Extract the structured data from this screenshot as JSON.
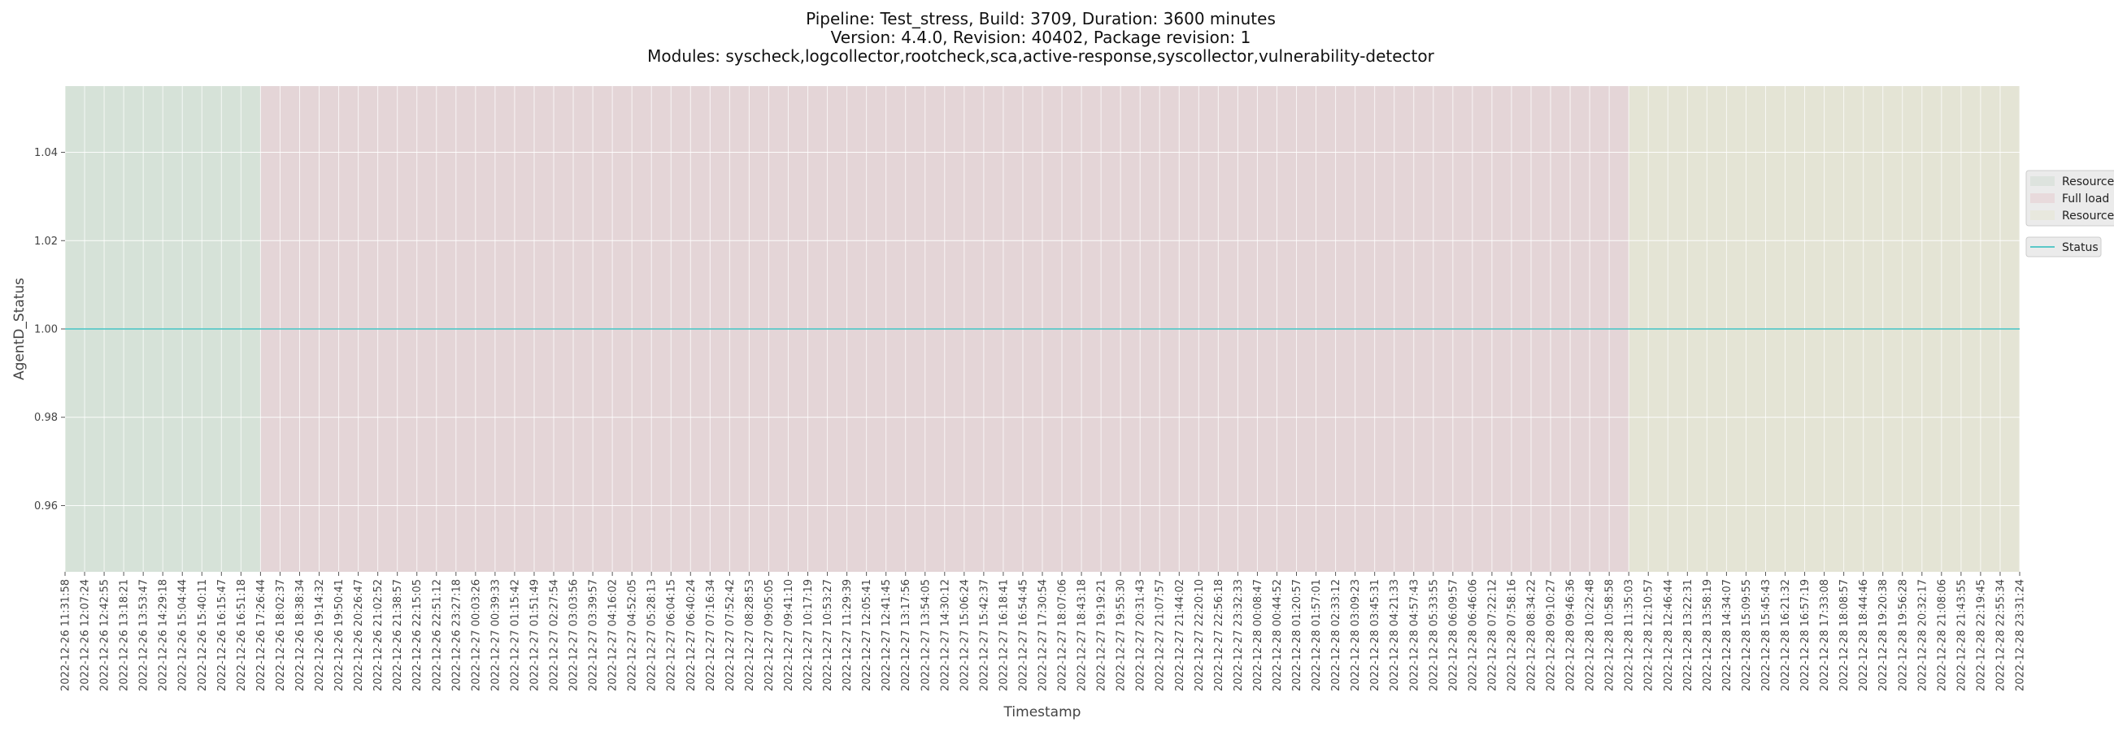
{
  "chart_data": {
    "type": "line",
    "title_lines": [
      "Pipeline: Test_stress, Build: 3709, Duration: 3600 minutes",
      "Version: 4.4.0, Revision: 40402, Package revision: 1",
      "Modules: syscheck,logcollector,rootcheck,sca,active-response,syscollector,vulnerability-detector"
    ],
    "xlabel": "Timestamp",
    "ylabel": "AgentD_Status",
    "ylim": [
      0.945,
      1.055
    ],
    "yticks": [
      0.96,
      0.98,
      1.0,
      1.02,
      1.04
    ],
    "ytick_labels": [
      "0.96",
      "0.98",
      "1.00",
      "1.02",
      "1.04"
    ],
    "grid": true,
    "legend_placement": "outside-right",
    "x": [
      "2022-12-26 11:31:58",
      "2022-12-26 12:07:24",
      "2022-12-26 12:42:55",
      "2022-12-26 13:18:21",
      "2022-12-26 13:53:47",
      "2022-12-26 14:29:18",
      "2022-12-26 15:04:44",
      "2022-12-26 15:40:11",
      "2022-12-26 16:15:47",
      "2022-12-26 16:51:18",
      "2022-12-26 17:26:44",
      "2022-12-26 18:02:37",
      "2022-12-26 18:38:34",
      "2022-12-26 19:14:32",
      "2022-12-26 19:50:41",
      "2022-12-26 20:26:47",
      "2022-12-26 21:02:52",
      "2022-12-26 21:38:57",
      "2022-12-26 22:15:05",
      "2022-12-26 22:51:12",
      "2022-12-26 23:27:18",
      "2022-12-27 00:03:26",
      "2022-12-27 00:39:33",
      "2022-12-27 01:15:42",
      "2022-12-27 01:51:49",
      "2022-12-27 02:27:54",
      "2022-12-27 03:03:56",
      "2022-12-27 03:39:57",
      "2022-12-27 04:16:02",
      "2022-12-27 04:52:05",
      "2022-12-27 05:28:13",
      "2022-12-27 06:04:15",
      "2022-12-27 06:40:24",
      "2022-12-27 07:16:34",
      "2022-12-27 07:52:42",
      "2022-12-27 08:28:53",
      "2022-12-27 09:05:05",
      "2022-12-27 09:41:10",
      "2022-12-27 10:17:19",
      "2022-12-27 10:53:27",
      "2022-12-27 11:29:39",
      "2022-12-27 12:05:41",
      "2022-12-27 12:41:45",
      "2022-12-27 13:17:56",
      "2022-12-27 13:54:05",
      "2022-12-27 14:30:12",
      "2022-12-27 15:06:24",
      "2022-12-27 15:42:37",
      "2022-12-27 16:18:41",
      "2022-12-27 16:54:45",
      "2022-12-27 17:30:54",
      "2022-12-27 18:07:06",
      "2022-12-27 18:43:18",
      "2022-12-27 19:19:21",
      "2022-12-27 19:55:30",
      "2022-12-27 20:31:43",
      "2022-12-27 21:07:57",
      "2022-12-27 21:44:02",
      "2022-12-27 22:20:10",
      "2022-12-27 22:56:18",
      "2022-12-27 23:32:33",
      "2022-12-28 00:08:47",
      "2022-12-28 00:44:52",
      "2022-12-28 01:20:57",
      "2022-12-28 01:57:01",
      "2022-12-28 02:33:12",
      "2022-12-28 03:09:23",
      "2022-12-28 03:45:31",
      "2022-12-28 04:21:33",
      "2022-12-28 04:57:43",
      "2022-12-28 05:33:55",
      "2022-12-28 06:09:57",
      "2022-12-28 06:46:06",
      "2022-12-28 07:22:12",
      "2022-12-28 07:58:16",
      "2022-12-28 08:34:22",
      "2022-12-28 09:10:27",
      "2022-12-28 09:46:36",
      "2022-12-28 10:22:48",
      "2022-12-28 10:58:58",
      "2022-12-28 11:35:03",
      "2022-12-28 12:10:57",
      "2022-12-28 12:46:44",
      "2022-12-28 13:22:31",
      "2022-12-28 13:58:19",
      "2022-12-28 14:34:07",
      "2022-12-28 15:09:55",
      "2022-12-28 15:45:43",
      "2022-12-28 16:21:32",
      "2022-12-28 16:57:19",
      "2022-12-28 17:33:08",
      "2022-12-28 18:08:57",
      "2022-12-28 18:44:46",
      "2022-12-28 19:20:38",
      "2022-12-28 19:56:28",
      "2022-12-28 20:32:17",
      "2022-12-28 21:08:06",
      "2022-12-28 21:43:55",
      "2022-12-28 22:19:45",
      "2022-12-28 22:55:34",
      "2022-12-28 23:31:24"
    ],
    "series": [
      {
        "name": "Status",
        "color": "#5bc8c8",
        "values": [
          1,
          1,
          1,
          1,
          1,
          1,
          1,
          1,
          1,
          1,
          1,
          1,
          1,
          1,
          1,
          1,
          1,
          1,
          1,
          1,
          1,
          1,
          1,
          1,
          1,
          1,
          1,
          1,
          1,
          1,
          1,
          1,
          1,
          1,
          1,
          1,
          1,
          1,
          1,
          1,
          1,
          1,
          1,
          1,
          1,
          1,
          1,
          1,
          1,
          1,
          1,
          1,
          1,
          1,
          1,
          1,
          1,
          1,
          1,
          1,
          1,
          1,
          1,
          1,
          1,
          1,
          1,
          1,
          1,
          1,
          1,
          1,
          1,
          1,
          1,
          1,
          1,
          1,
          1,
          1,
          1,
          1,
          1,
          1,
          1,
          1,
          1,
          1,
          1,
          1,
          1,
          1,
          1,
          1,
          1,
          1,
          1,
          1,
          1,
          1,
          1
        ]
      }
    ],
    "phases": [
      {
        "label": "Resources",
        "start": "2022-12-26 11:31:58",
        "end": "2022-12-26 17:26:44",
        "color": "#d6e2d8"
      },
      {
        "label": "Full load",
        "start": "2022-12-26 17:26:44",
        "end": "2022-12-28 11:35:03",
        "color": "#e4d5d7"
      },
      {
        "label": "Resources",
        "start": "2022-12-28 11:35:03",
        "end": "2022-12-28 23:31:24",
        "color": "#e4e4d5"
      }
    ],
    "phase_legend_entries": [
      "Resources",
      "Full load",
      "Resources"
    ],
    "line_legend_entries": [
      "Status"
    ]
  }
}
